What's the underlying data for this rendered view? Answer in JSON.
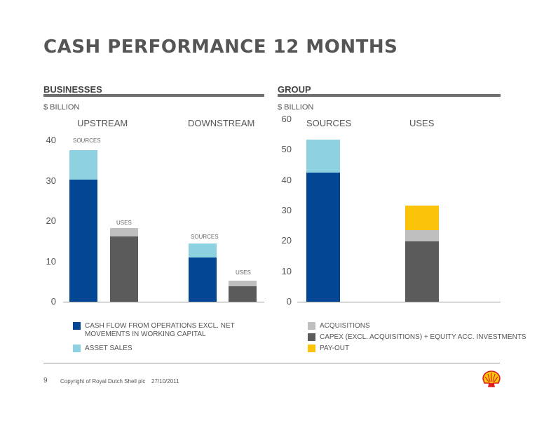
{
  "page": {
    "title": "CASH PERFORMANCE 12 MONTHS",
    "page_number": "9",
    "copyright": "Copyright of Royal Dutch Shell plc",
    "date": "27/10/2011"
  },
  "colors": {
    "cash_flow": "#034694",
    "asset_sales": "#8ed2e2",
    "uses_dark": "#5b5b5b",
    "acquisitions": "#bfbfbf",
    "capex": "#5b5b5b",
    "payout": "#fbc408"
  },
  "businesses": {
    "section_title": "BUSINESSES",
    "unit": "$ BILLION",
    "groups": [
      "UPSTREAM",
      "DOWNSTREAM"
    ],
    "bar_labels": [
      "SOURCES",
      "USES",
      "SOURCES",
      "USES"
    ]
  },
  "group": {
    "section_title": "GROUP",
    "unit": "$ BILLION",
    "categories": [
      "SOURCES",
      "USES"
    ]
  },
  "legend": {
    "cash_flow": "CASH FLOW FROM OPERATIONS EXCL. NET MOVEMENTS IN WORKING CAPITAL",
    "asset_sales": "ASSET SALES",
    "acquisitions": "ACQUISITIONS",
    "capex": "CAPEX (EXCL. ACQUISITIONS) + EQUITY ACC. INVESTMENTS",
    "payout": "PAY-OUT"
  },
  "chart_data": [
    {
      "type": "bar",
      "stacked": true,
      "title": "BUSINESSES",
      "ylabel": "$ BILLION",
      "ylim": [
        0,
        40
      ],
      "yticks": [
        0,
        10,
        20,
        30,
        40
      ],
      "groups": [
        "UPSTREAM",
        "DOWNSTREAM"
      ],
      "bars": [
        {
          "group": "UPSTREAM",
          "label": "SOURCES",
          "segments": [
            {
              "series": "CASH FLOW FROM OPERATIONS EXCL. NET MOVEMENTS IN WORKING CAPITAL",
              "value": 30.2,
              "color": "#034694"
            },
            {
              "series": "ASSET SALES",
              "value": 7.4,
              "color": "#8ed2e2"
            }
          ]
        },
        {
          "group": "UPSTREAM",
          "label": "USES",
          "segments": [
            {
              "series": "uses",
              "value": 16.2,
              "color": "#5b5b5b"
            },
            {
              "series": "uses-top",
              "value": 2.0,
              "color": "#bfbfbf"
            }
          ]
        },
        {
          "group": "DOWNSTREAM",
          "label": "SOURCES",
          "segments": [
            {
              "series": "CASH FLOW FROM OPERATIONS EXCL. NET MOVEMENTS IN WORKING CAPITAL",
              "value": 11.0,
              "color": "#034694"
            },
            {
              "series": "ASSET SALES",
              "value": 3.5,
              "color": "#8ed2e2"
            }
          ]
        },
        {
          "group": "DOWNSTREAM",
          "label": "USES",
          "segments": [
            {
              "series": "uses",
              "value": 3.8,
              "color": "#5b5b5b"
            },
            {
              "series": "uses-top",
              "value": 1.5,
              "color": "#bfbfbf"
            }
          ]
        }
      ]
    },
    {
      "type": "bar",
      "stacked": true,
      "title": "GROUP",
      "ylabel": "$ BILLION",
      "ylim": [
        0,
        60
      ],
      "yticks": [
        0,
        10,
        20,
        30,
        40,
        50,
        60
      ],
      "categories": [
        "SOURCES",
        "USES"
      ],
      "bars": [
        {
          "label": "SOURCES",
          "segments": [
            {
              "series": "CASH FLOW FROM OPERATIONS EXCL. NET MOVEMENTS IN WORKING CAPITAL",
              "value": 42.4,
              "color": "#034694"
            },
            {
              "series": "ASSET SALES",
              "value": 10.9,
              "color": "#8ed2e2"
            }
          ]
        },
        {
          "label": "USES",
          "segments": [
            {
              "series": "CAPEX (EXCL. ACQUISITIONS) + EQUITY ACC. INVESTMENTS",
              "value": 19.8,
              "color": "#5b5b5b"
            },
            {
              "series": "ACQUISITIONS",
              "value": 3.8,
              "color": "#bfbfbf"
            },
            {
              "series": "PAY-OUT",
              "value": 8.1,
              "color": "#fbc408"
            }
          ]
        }
      ]
    }
  ]
}
